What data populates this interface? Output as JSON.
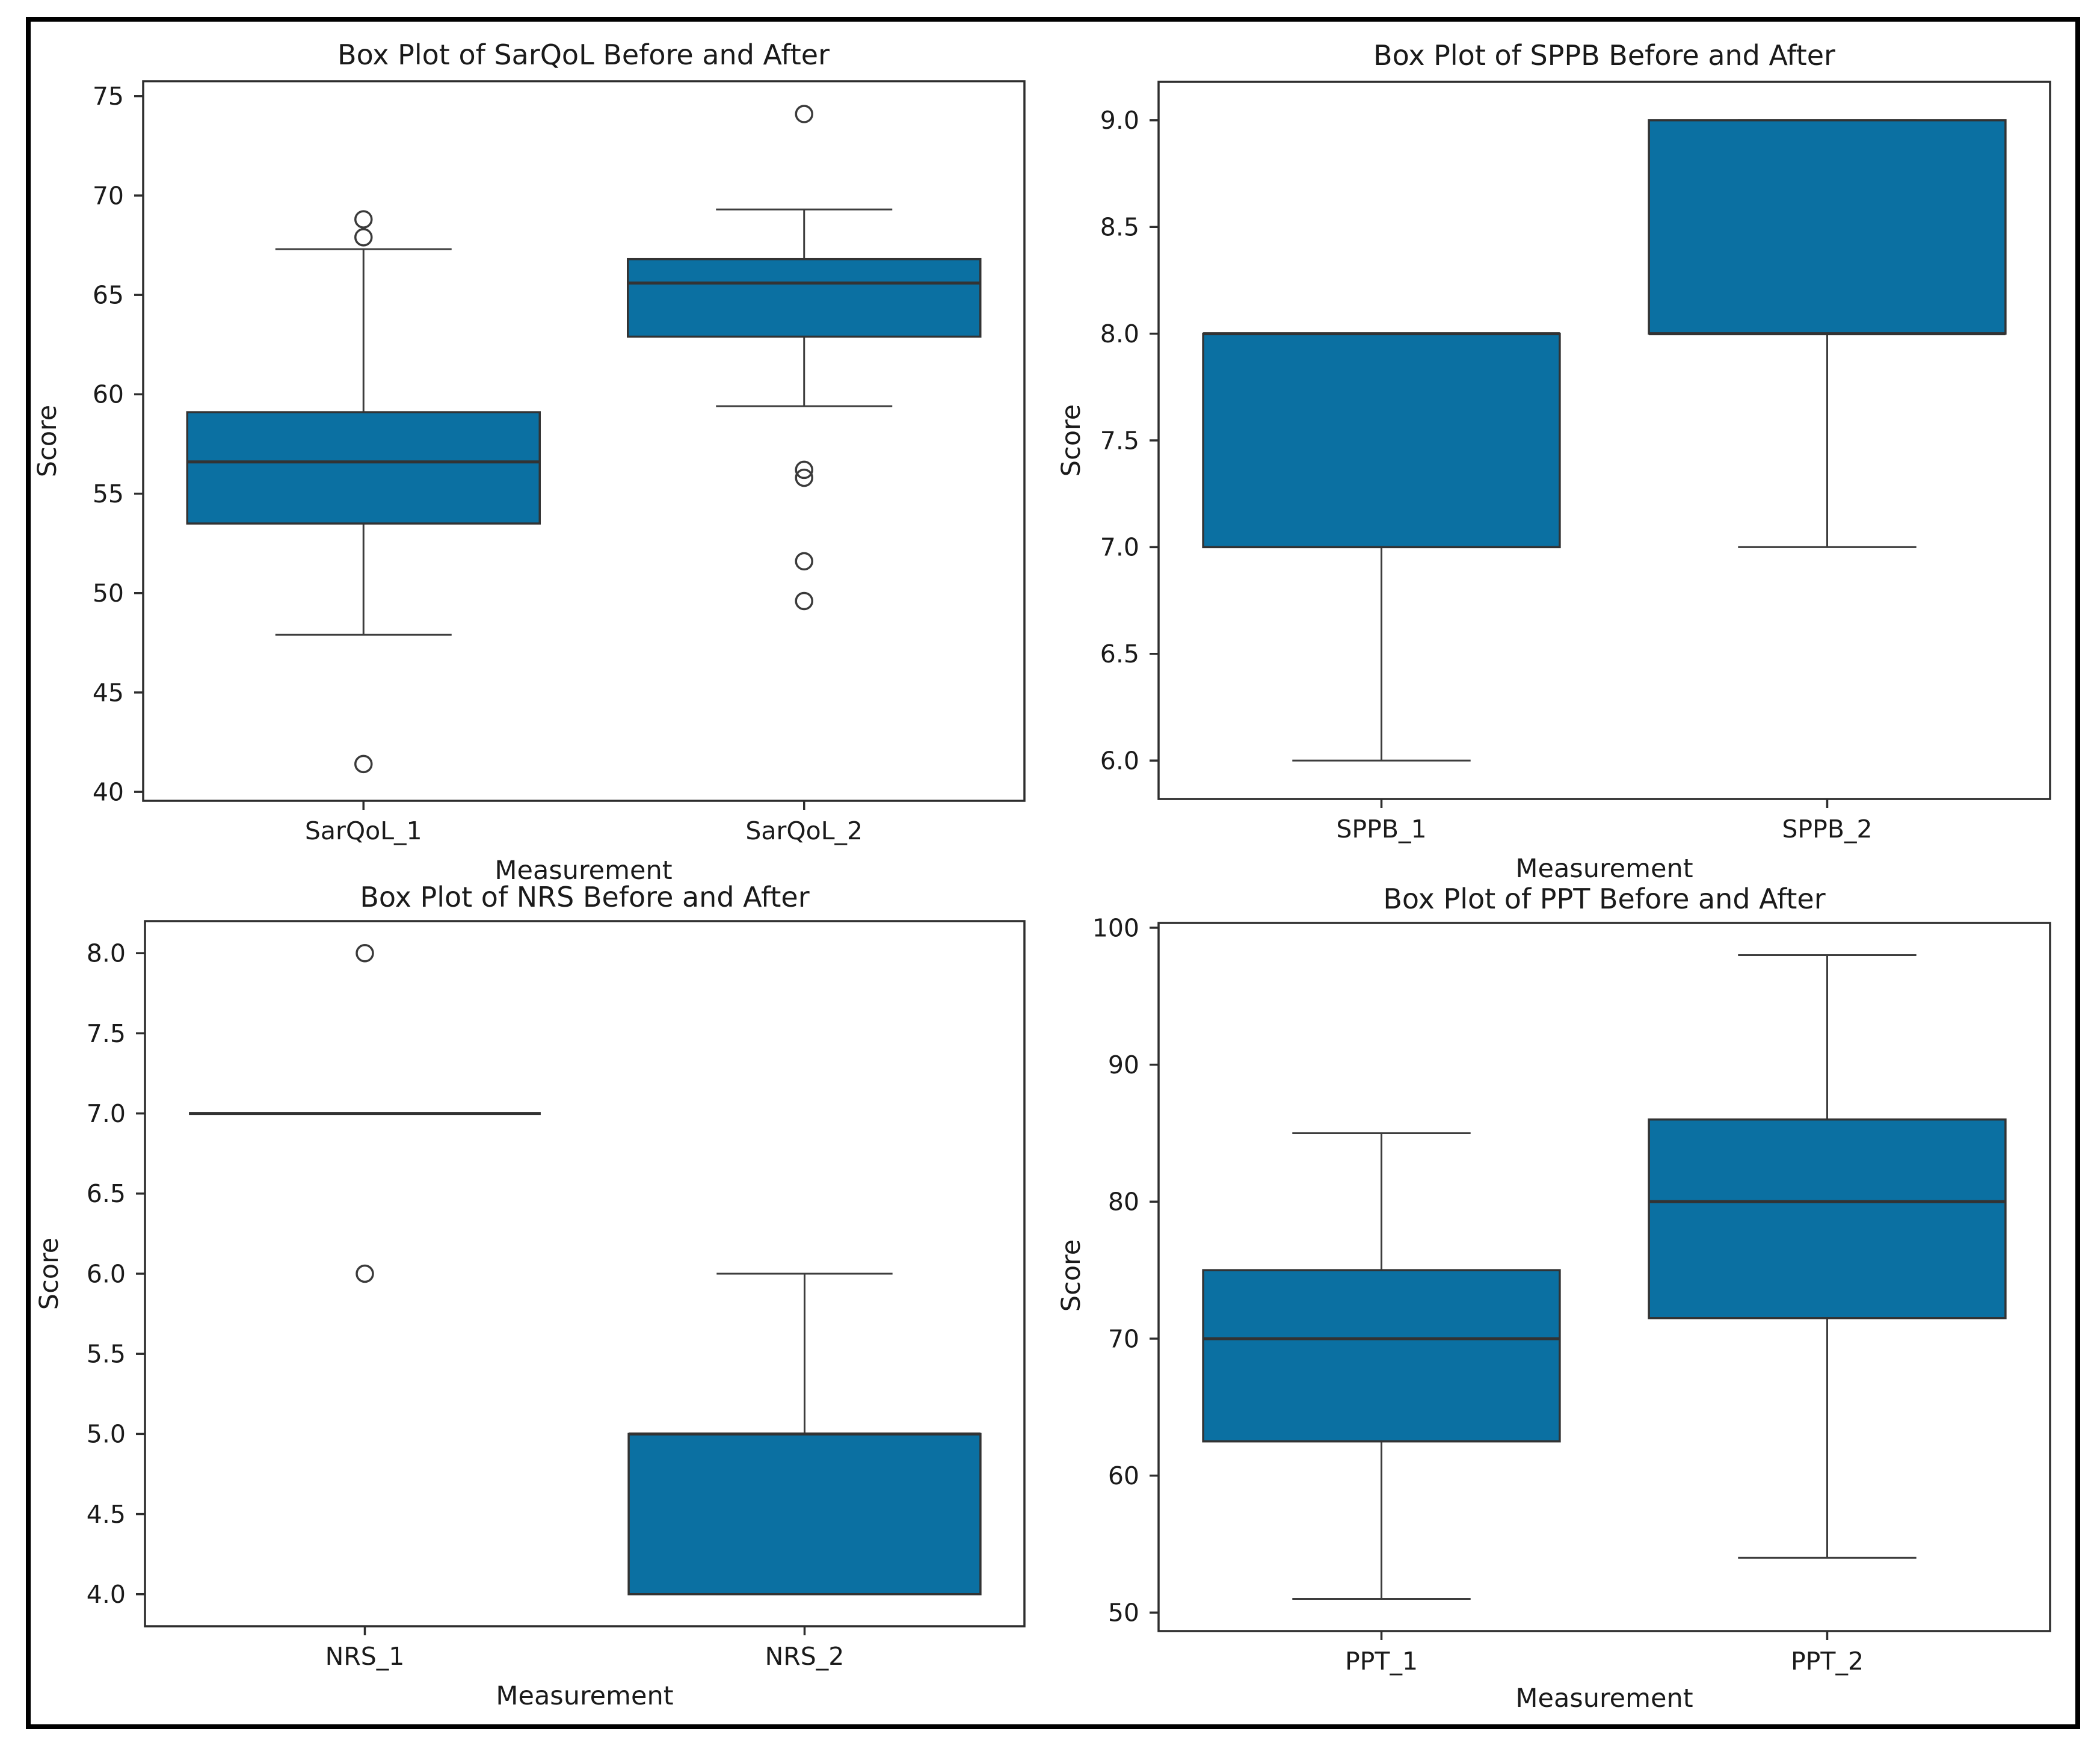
{
  "figure": {
    "background": "#ffffff",
    "border_color": "#000000"
  },
  "style": {
    "box_fill": "#0B70A2",
    "box_edge": "#333333",
    "median_color": "#333333",
    "whisker_color": "#3d3d3d",
    "spine_color": "#2d2d2d",
    "outlier_edge": "#3a3a3a",
    "text_color": "#1a1a1a"
  },
  "chart_data": [
    {
      "id": "sarqol",
      "type": "box",
      "title": "Box Plot of SarQoL Before and After",
      "xlabel": "Measurement",
      "ylabel": "Score",
      "ylim": [
        39.55,
        75.75
      ],
      "grid": false,
      "yticks": [
        {
          "v": 40,
          "label": "40"
        },
        {
          "v": 45,
          "label": "45"
        },
        {
          "v": 50,
          "label": "50"
        },
        {
          "v": 55,
          "label": "55"
        },
        {
          "v": 60,
          "label": "60"
        },
        {
          "v": 65,
          "label": "65"
        },
        {
          "v": 70,
          "label": "70"
        },
        {
          "v": 75,
          "label": "75"
        }
      ],
      "categories": [
        "SarQoL_1",
        "SarQoL_2"
      ],
      "series": [
        {
          "name": "SarQoL_1",
          "whisker_low": 47.9,
          "q1": 53.5,
          "median": 56.6,
          "q3": 59.1,
          "whisker_high": 67.3,
          "outliers": [
            68.8,
            67.9,
            41.4
          ]
        },
        {
          "name": "SarQoL_2",
          "whisker_low": 59.4,
          "q1": 62.9,
          "median": 65.6,
          "q3": 66.8,
          "whisker_high": 69.3,
          "outliers": [
            74.1,
            56.2,
            55.8,
            51.6,
            49.6
          ]
        }
      ]
    },
    {
      "id": "sppb",
      "type": "box",
      "title": "Box Plot of SPPB Before and After",
      "xlabel": "Measurement",
      "ylabel": "Score",
      "ylim": [
        5.82,
        9.18
      ],
      "grid": false,
      "yticks": [
        {
          "v": 6.0,
          "label": "6.0"
        },
        {
          "v": 6.5,
          "label": "6.5"
        },
        {
          "v": 7.0,
          "label": "7.0"
        },
        {
          "v": 7.5,
          "label": "7.5"
        },
        {
          "v": 8.0,
          "label": "8.0"
        },
        {
          "v": 8.5,
          "label": "8.5"
        },
        {
          "v": 9.0,
          "label": "9.0"
        }
      ],
      "categories": [
        "SPPB_1",
        "SPPB_2"
      ],
      "series": [
        {
          "name": "SPPB_1",
          "whisker_low": 6.0,
          "q1": 7.0,
          "median": 8.0,
          "q3": 8.0,
          "whisker_high": 8.0,
          "outliers": []
        },
        {
          "name": "SPPB_2",
          "whisker_low": 7.0,
          "q1": 8.0,
          "median": 8.0,
          "q3": 9.0,
          "whisker_high": 9.0,
          "outliers": []
        }
      ]
    },
    {
      "id": "nrs",
      "type": "box",
      "title": "Box Plot of NRS Before and After",
      "xlabel": "Measurement",
      "ylabel": "Score",
      "ylim": [
        3.8,
        8.2
      ],
      "grid": false,
      "yticks": [
        {
          "v": 4.0,
          "label": "4.0"
        },
        {
          "v": 4.5,
          "label": "4.5"
        },
        {
          "v": 5.0,
          "label": "5.0"
        },
        {
          "v": 5.5,
          "label": "5.5"
        },
        {
          "v": 6.0,
          "label": "6.0"
        },
        {
          "v": 6.5,
          "label": "6.5"
        },
        {
          "v": 7.0,
          "label": "7.0"
        },
        {
          "v": 7.5,
          "label": "7.5"
        },
        {
          "v": 8.0,
          "label": "8.0"
        }
      ],
      "categories": [
        "NRS_1",
        "NRS_2"
      ],
      "series": [
        {
          "name": "NRS_1",
          "whisker_low": 7.0,
          "q1": 7.0,
          "median": 7.0,
          "q3": 7.0,
          "whisker_high": 7.0,
          "outliers": [
            8.0,
            6.0
          ]
        },
        {
          "name": "NRS_2",
          "whisker_low": 4.0,
          "q1": 4.0,
          "median": 5.0,
          "q3": 5.0,
          "whisker_high": 6.0,
          "outliers": []
        }
      ]
    },
    {
      "id": "ppt",
      "type": "box",
      "title": "Box Plot of PPT Before and After",
      "xlabel": "Measurement",
      "ylabel": "Score",
      "ylim": [
        48.65,
        100.35
      ],
      "grid": false,
      "yticks": [
        {
          "v": 50,
          "label": "50"
        },
        {
          "v": 60,
          "label": "60"
        },
        {
          "v": 70,
          "label": "70"
        },
        {
          "v": 80,
          "label": "80"
        },
        {
          "v": 90,
          "label": "90"
        },
        {
          "v": 100,
          "label": "100"
        }
      ],
      "categories": [
        "PPT_1",
        "PPT_2"
      ],
      "series": [
        {
          "name": "PPT_1",
          "whisker_low": 51,
          "q1": 62.5,
          "median": 70,
          "q3": 75,
          "whisker_high": 85,
          "outliers": []
        },
        {
          "name": "PPT_2",
          "whisker_low": 54,
          "q1": 71.5,
          "median": 80,
          "q3": 86,
          "whisker_high": 98,
          "outliers": []
        }
      ]
    }
  ]
}
